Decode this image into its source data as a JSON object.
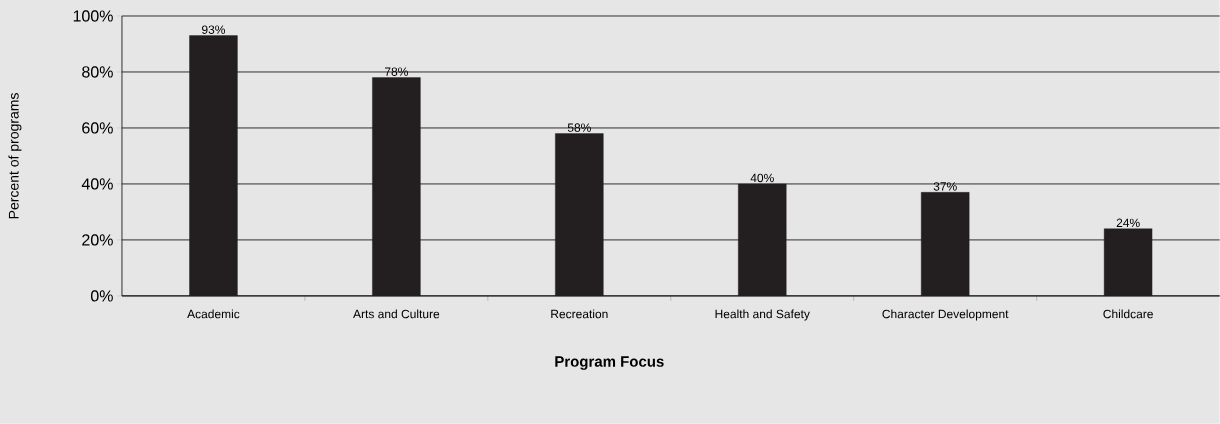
{
  "chart_data": {
    "type": "bar",
    "xlabel": "Program Focus",
    "ylabel": "Percent of programs",
    "categories": [
      "Academic",
      "Arts and Culture",
      "Recreation",
      "Health and Safety",
      "Character Development",
      "Childcare"
    ],
    "values": [
      93,
      78,
      58,
      40,
      37,
      24
    ],
    "value_labels": [
      "93%",
      "78%",
      "58%",
      "40%",
      "37%",
      "24%"
    ],
    "color": "#231f20",
    "ylim": [
      0,
      100
    ],
    "yticks": [
      {
        "value": 0,
        "label": "0%"
      },
      {
        "value": 20,
        "label": "20%"
      },
      {
        "value": 40,
        "label": "40%"
      },
      {
        "value": 60,
        "label": "60%"
      },
      {
        "value": 80,
        "label": "80%"
      },
      {
        "value": 100,
        "label": "100%"
      }
    ],
    "grid": "y"
  }
}
